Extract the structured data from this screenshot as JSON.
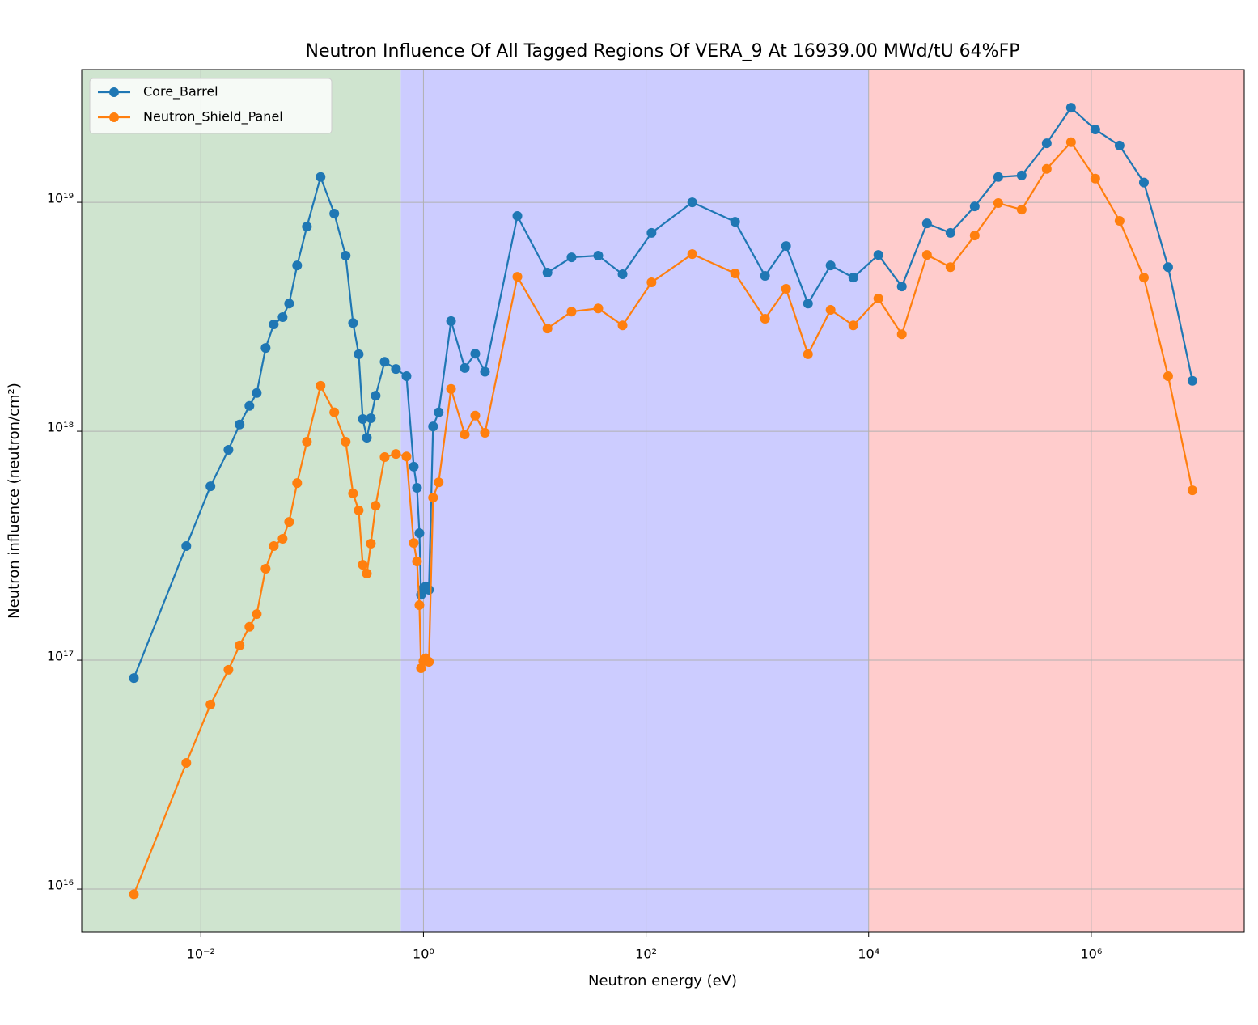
{
  "chart_data": {
    "type": "line",
    "title": "Neutron Influence Of All Tagged Regions Of VERA_9 At 16939.00 MWd/tU 64%FP",
    "xlabel": "Neutron energy (eV)",
    "ylabel": "Neutron influence (neutron/cm²)",
    "xscale": "log",
    "yscale": "log",
    "grid": true,
    "legend": "upper left",
    "xlim": [
      0.00085,
      23700000
    ],
    "ylim": [
      6500000000000000.0,
      3.8e+19
    ],
    "xticks": [
      {
        "value": 0.01,
        "label": "10⁻²"
      },
      {
        "value": 1,
        "label": "10⁰"
      },
      {
        "value": 100,
        "label": "10²"
      },
      {
        "value": 10000,
        "label": "10⁴"
      },
      {
        "value": 1000000,
        "label": "10⁶"
      }
    ],
    "yticks": [
      {
        "value": 1e+16,
        "label": "10¹⁶"
      },
      {
        "value": 1e+17,
        "label": "10¹⁷"
      },
      {
        "value": 1e+18,
        "label": "10¹⁸"
      },
      {
        "value": 1e+19,
        "label": "10¹⁹"
      }
    ],
    "regions": [
      {
        "range": [
          0.00085,
          0.625
        ],
        "color": "#cfe4cf"
      },
      {
        "range": [
          0.625,
          10000
        ],
        "color": "#ccccff"
      },
      {
        "range": [
          10000,
          23700000
        ],
        "color": "#ffcccc"
      }
    ],
    "x": [
      0.0025,
      0.0074,
      0.0122,
      0.0177,
      0.0223,
      0.0273,
      0.0318,
      0.0382,
      0.0452,
      0.0543,
      0.0621,
      0.0733,
      0.0897,
      0.119,
      0.158,
      0.2,
      0.233,
      0.262,
      0.285,
      0.31,
      0.337,
      0.372,
      0.448,
      0.566,
      0.704,
      0.818,
      0.875,
      0.92,
      0.951,
      1.0,
      1.05,
      1.12,
      1.22,
      1.37,
      1.77,
      2.35,
      2.92,
      3.57,
      6.98,
      13,
      21.4,
      37.2,
      61.5,
      112,
      260,
      631,
      1172,
      1811,
      2851,
      4550,
      7277,
      12220,
      19860,
      33420,
      54330,
      89740,
      145900,
      237100,
      398100,
      657700,
      1087000,
      1797000,
      2972000,
      4909000,
      8110000
    ],
    "series": [
      {
        "name": "Core_Barrel",
        "color": "#1f77b4",
        "values": [
          8.36e+16,
          3.15e+17,
          5.75e+17,
          8.3e+17,
          1.07e+18,
          1.29e+18,
          1.47e+18,
          2.31e+18,
          2.93e+18,
          3.15e+18,
          3.61e+18,
          5.3e+18,
          7.83e+18,
          1.29e+19,
          8.93e+18,
          5.85e+18,
          2.97e+18,
          2.17e+18,
          1.13e+18,
          9.37e+17,
          1.14e+18,
          1.43e+18,
          2.01e+18,
          1.87e+18,
          1.74e+18,
          7e+17,
          5.66e+17,
          3.59e+17,
          1.93e+17,
          2.06e+17,
          2.1e+17,
          2.03e+17,
          1.05e+18,
          1.21e+18,
          3.03e+18,
          1.89e+18,
          2.18e+18,
          1.82e+18,
          8.71e+18,
          4.93e+18,
          5.75e+18,
          5.85e+18,
          4.85e+18,
          7.35e+18,
          1e+19,
          8.22e+18,
          4.77e+18,
          6.44e+18,
          3.61e+18,
          5.3e+18,
          4.69e+18,
          5.89e+18,
          4.29e+18,
          8.09e+18,
          7.35e+18,
          9.6e+18,
          1.29e+19,
          1.31e+19,
          1.81e+19,
          2.59e+19,
          2.08e+19,
          1.77e+19,
          1.22e+19,
          5.21e+18,
          1.66e+18
        ]
      },
      {
        "name": "Neutron_Shield_Panel",
        "color": "#ff7f0e",
        "values": [
          9500000000000000.0,
          3.56e+16,
          6.4e+16,
          9.08e+16,
          1.16e+17,
          1.4e+17,
          1.59e+17,
          2.51e+17,
          3.15e+17,
          3.39e+17,
          4.02e+17,
          5.94e+17,
          9e+17,
          1.58e+18,
          1.21e+18,
          9e+17,
          5.35e+17,
          4.51e+17,
          2.61e+17,
          2.39e+17,
          3.23e+17,
          4.73e+17,
          7.71e+17,
          7.96e+17,
          7.76e+17,
          3.25e+17,
          2.7e+17,
          1.74e+17,
          9.22e+16,
          9.91e+16,
          1.02e+17,
          9.84e+16,
          5.13e+17,
          5.98e+17,
          1.53e+18,
          9.68e+17,
          1.17e+18,
          9.84e+17,
          4.73e+18,
          2.81e+18,
          3.33e+18,
          3.44e+18,
          2.9e+18,
          4.47e+18,
          5.94e+18,
          4.89e+18,
          3.1e+18,
          4.19e+18,
          2.17e+18,
          3.39e+18,
          2.9e+18,
          3.8e+18,
          2.65e+18,
          5.89e+18,
          5.21e+18,
          7.16e+18,
          9.92e+18,
          9.29e+18,
          1.4e+19,
          1.83e+19,
          1.27e+19,
          8.3e+18,
          4.69e+18,
          1.74e+18,
          5.52e+17
        ]
      }
    ]
  }
}
